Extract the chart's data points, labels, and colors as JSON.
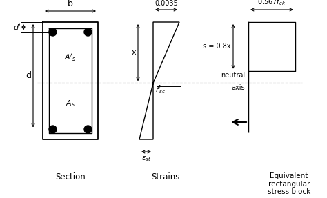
{
  "bg_color": "#ffffff",
  "line_color": "#000000",
  "section_label": "Section",
  "strains_label": "Strains",
  "stress_label": "Equivalent\nrectangular\nstress block",
  "label_b": "b",
  "label_d": "d",
  "label_x": "x",
  "label_s": "s = 0.8x",
  "label_neutral": "neutral",
  "label_axis": "axis",
  "label_0035": "0.0035",
  "label_fck": "0.567$f_{ck}$",
  "fig_width": 4.74,
  "fig_height": 2.87,
  "dpi": 100
}
